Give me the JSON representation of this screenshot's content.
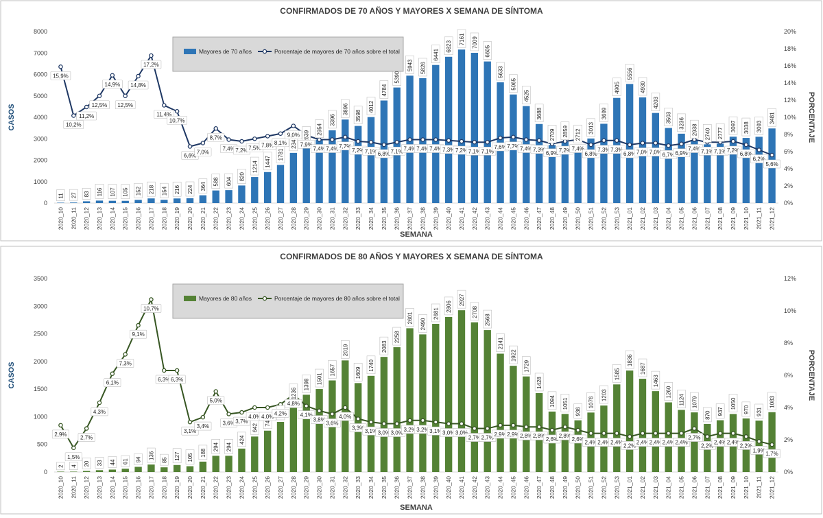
{
  "chart_data": [
    {
      "type": "bar",
      "title": "CONFIRMADOS DE 70 AÑOS Y MAYORES X SEMANA DE SÍNTOMA",
      "xlabel": "SEMANA",
      "ylabel": "CASOS",
      "y2label": "PORCENTAJE",
      "ylim": [
        0,
        8000
      ],
      "y2lim": [
        0,
        20
      ],
      "yticks": [
        "0",
        "1000",
        "2000",
        "3000",
        "4000",
        "5000",
        "6000",
        "7000",
        "8000"
      ],
      "y2ticks": [
        "0%",
        "2%",
        "4%",
        "6%",
        "8%",
        "10%",
        "12%",
        "14%",
        "16%",
        "18%",
        "20%"
      ],
      "legend_position": "top-left",
      "bar_color": "#2e75b6",
      "line_color": "#1f3864",
      "categories": [
        "2020_10",
        "2020_11",
        "2020_12",
        "2020_13",
        "2020_14",
        "2020_15",
        "2020_16",
        "2020_17",
        "2020_18",
        "2020_19",
        "2020_20",
        "2020_21",
        "2020_22",
        "2020_23",
        "2020_24",
        "2020_25",
        "2020_26",
        "2020_27",
        "2020_28",
        "2020_29",
        "2020_30",
        "2020_31",
        "2020_32",
        "2020_33",
        "2020_34",
        "2020_35",
        "2020_36",
        "2020_37",
        "2020_38",
        "2020_39",
        "2020_40",
        "2020_41",
        "2020_42",
        "2020_43",
        "2020_44",
        "2020_45",
        "2020_46",
        "2020_47",
        "2020_48",
        "2020_49",
        "2020_50",
        "2020_51",
        "2020_52",
        "2020_53",
        "2021_01",
        "2021_02",
        "2021_03",
        "2021_04",
        "2021_05",
        "2021_06",
        "2021_07",
        "2021_08",
        "2021_09",
        "2021_10",
        "2021_11",
        "2021_12"
      ],
      "series": [
        {
          "name": "Mayores de 70 años",
          "kind": "bar",
          "values": [
            11,
            27,
            83,
            116,
            107,
            105,
            152,
            218,
            154,
            216,
            224,
            364,
            588,
            604,
            820,
            1214,
            1447,
            1781,
            2341,
            2639,
            2954,
            3396,
            3896,
            3598,
            4012,
            4784,
            5390,
            5943,
            5826,
            6441,
            6823,
            7161,
            7009,
            6605,
            5633,
            5065,
            4525,
            3688,
            2709,
            2859,
            2712,
            3013,
            3699,
            4905,
            5556,
            4930,
            4203,
            3503,
            3236,
            2938,
            2740,
            2777,
            3097,
            3038,
            3093,
            3481
          ]
        },
        {
          "name": "Porcentaje de mayores de 70 años sobre el total",
          "kind": "line",
          "axis": "right",
          "values": [
            15.9,
            10.2,
            11.2,
            12.5,
            14.9,
            12.5,
            14.8,
            17.2,
            11.4,
            10.7,
            6.6,
            7.0,
            8.7,
            7.4,
            7.2,
            7.5,
            7.8,
            8.1,
            9.0,
            7.9,
            7.4,
            7.4,
            7.7,
            7.2,
            7.1,
            6.8,
            7.1,
            7.4,
            7.4,
            7.4,
            7.3,
            7.2,
            7.1,
            7.1,
            7.6,
            7.7,
            7.4,
            7.3,
            6.9,
            7.2,
            7.4,
            6.8,
            7.3,
            7.3,
            6.8,
            7.0,
            7.0,
            6.7,
            6.9,
            7.4,
            7.1,
            7.1,
            7.2,
            6.8,
            6.2,
            5.6
          ],
          "labels": [
            "15,9%",
            "10,2%",
            "11,2%",
            "12,5%",
            "14,9%",
            "12,5%",
            "14,8%",
            "17,2%",
            "11,4%",
            "10,7%",
            "6,6%",
            "7,0%",
            "8,7%",
            "7,4%",
            "7,2%",
            "7,5%",
            "7,8%",
            "8,1%",
            "9,0%",
            "7,9%",
            "7,4%",
            "7,4%",
            "7,7%",
            "7,2%",
            "7,1%",
            "6,8%",
            "7,1%",
            "7,4%",
            "7,4%",
            "7,4%",
            "7,3%",
            "7,2%",
            "7,1%",
            "7,1%",
            "7,6%",
            "7,7%",
            "7,4%",
            "7,3%",
            "6,9%",
            "7,2%",
            "7,4%",
            "6,8%",
            "7,3%",
            "7,3%",
            "6,8%",
            "7,0%",
            "7,0%",
            "6,7%",
            "6,9%",
            "7,4%",
            "7,1%",
            "7,1%",
            "7,2%",
            "6,8%",
            "6,2%",
            "5,6%"
          ]
        }
      ]
    },
    {
      "type": "bar",
      "title": "CONFIRMADOS DE 80 AÑOS Y MAYORES X SEMANA DE SÍNTOMA",
      "xlabel": "SEMANA",
      "ylabel": "CASOS",
      "y2label": "PORCENTAJE",
      "ylim": [
        0,
        3500
      ],
      "y2lim": [
        0,
        12
      ],
      "yticks": [
        "0",
        "500",
        "1000",
        "1500",
        "2000",
        "2500",
        "3000",
        "3500"
      ],
      "y2ticks": [
        "0%",
        "2%",
        "4%",
        "6%",
        "8%",
        "10%",
        "12%"
      ],
      "legend_position": "top-left",
      "bar_color": "#548235",
      "line_color": "#375623",
      "categories": [
        "2020_10",
        "2020_11",
        "2020_12",
        "2020_13",
        "2020_14",
        "2020_15",
        "2020_16",
        "2020_17",
        "2020_18",
        "2020_19",
        "2020_20",
        "2020_21",
        "2020_22",
        "2020_23",
        "2020_24",
        "2020_25",
        "2020_26",
        "2020_27",
        "2020_28",
        "2020_29",
        "2020_30",
        "2020_31",
        "2020_32",
        "2020_33",
        "2020_34",
        "2020_35",
        "2020_36",
        "2020_37",
        "2020_38",
        "2020_39",
        "2020_40",
        "2020_41",
        "2020_42",
        "2020_43",
        "2020_44",
        "2020_45",
        "2020_46",
        "2020_47",
        "2020_48",
        "2020_49",
        "2020_50",
        "2020_51",
        "2020_52",
        "2020_53",
        "2021_01",
        "2021_02",
        "2021_03",
        "2021_04",
        "2021_05",
        "2021_06",
        "2021_07",
        "2021_08",
        "2021_09",
        "2021_10",
        "2021_11",
        "2021_12"
      ],
      "series": [
        {
          "name": "Mayores de 80 años",
          "kind": "bar",
          "values": [
            2,
            4,
            20,
            33,
            44,
            61,
            94,
            136,
            85,
            127,
            105,
            188,
            294,
            294,
            424,
            642,
            748,
            906,
            1236,
            1398,
            1501,
            1657,
            2019,
            1609,
            1740,
            2083,
            2258,
            2601,
            2490,
            2681,
            2806,
            2927,
            2708,
            2568,
            2141,
            1922,
            1729,
            1428,
            1094,
            1051,
            936,
            1076,
            1203,
            1585,
            1836,
            1687,
            1463,
            1260,
            1124,
            1079,
            870,
            937,
            1050,
            970,
            931,
            1083
          ]
        },
        {
          "name": "Porcentaje de mayores de 80 años sobre el total",
          "kind": "line",
          "axis": "right",
          "values": [
            2.9,
            1.5,
            2.7,
            4.3,
            6.1,
            7.3,
            9.1,
            10.7,
            6.3,
            6.3,
            3.1,
            3.4,
            5.0,
            3.6,
            3.7,
            4.0,
            4.0,
            4.2,
            4.8,
            4.1,
            3.8,
            3.6,
            4.0,
            3.3,
            3.1,
            3.0,
            3.0,
            3.2,
            3.2,
            3.1,
            3.0,
            3.0,
            2.7,
            2.7,
            2.9,
            2.9,
            2.8,
            2.8,
            2.6,
            2.8,
            2.6,
            2.4,
            2.4,
            2.4,
            2.2,
            2.4,
            2.4,
            2.4,
            2.4,
            2.7,
            2.2,
            2.4,
            2.4,
            2.2,
            1.9,
            1.7
          ],
          "labels": [
            "2,9%",
            "1,5%",
            "2,7%",
            "4,3%",
            "6,1%",
            "7,3%",
            "9,1%",
            "10,7%",
            "6,3%",
            "6,3%",
            "3,1%",
            "3,4%",
            "5,0%",
            "3,6%",
            "3,7%",
            "4,0%",
            "4,0%",
            "4,2%",
            "4,8%",
            "4,1%",
            "3,8%",
            "3,6%",
            "4,0%",
            "3,3%",
            "3,1%",
            "3,0%",
            "3,0%",
            "3,2%",
            "3,2%",
            "3,1%",
            "3,0%",
            "3,0%",
            "2,7%",
            "2,7%",
            "2,9%",
            "2,9%",
            "2,8%",
            "2,8%",
            "2,6%",
            "2,8%",
            "2,6%",
            "2,4%",
            "2,4%",
            "2,4%",
            "2,2%",
            "2,4%",
            "2,4%",
            "2,4%",
            "2,4%",
            "2,7%",
            "2,2%",
            "2,4%",
            "2,4%",
            "2,2%",
            "1,9%",
            "1,7%"
          ]
        }
      ]
    }
  ]
}
